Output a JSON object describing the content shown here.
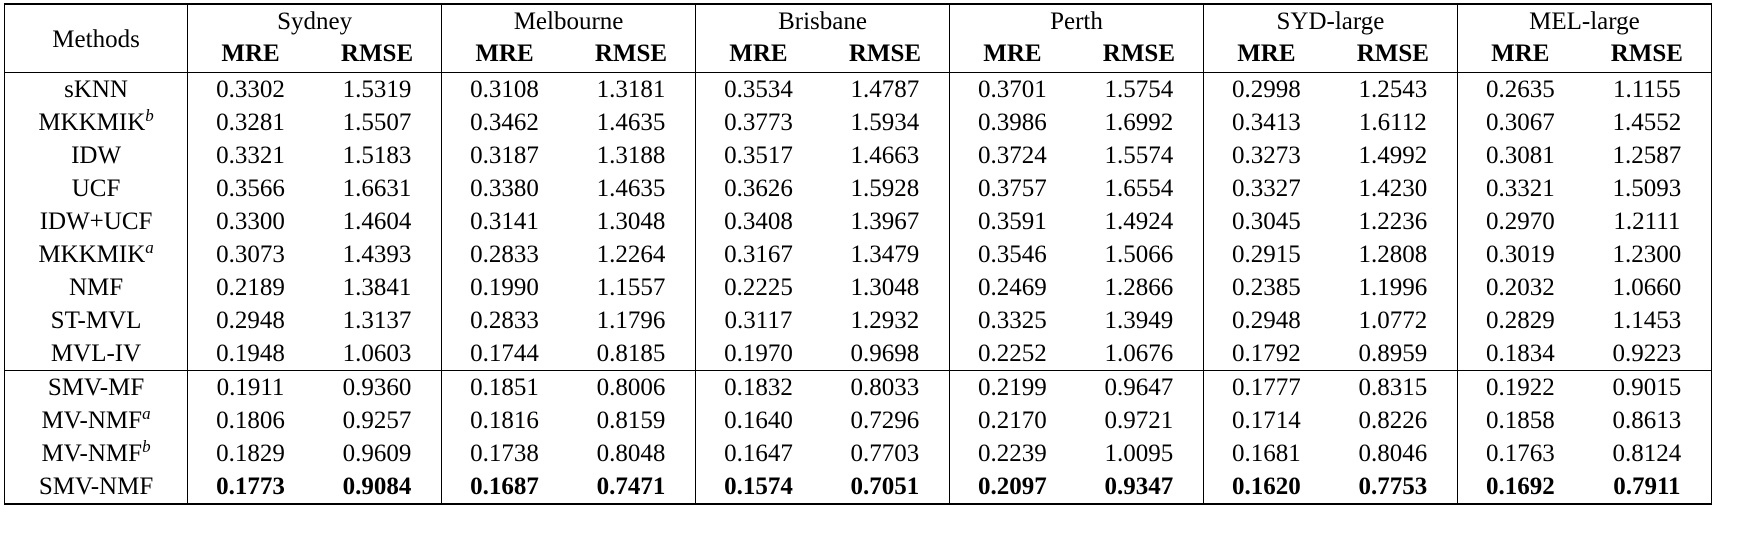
{
  "table": {
    "methods_header": "Methods",
    "cities": [
      "Sydney",
      "Melbourne",
      "Brisbane",
      "Perth",
      "SYD-large",
      "MEL-large"
    ],
    "metrics": [
      "MRE",
      "RMSE"
    ],
    "baselines": [
      {
        "name": "sKNN",
        "sup": "",
        "values": [
          "0.3302",
          "1.5319",
          "0.3108",
          "1.3181",
          "0.3534",
          "1.4787",
          "0.3701",
          "1.5754",
          "0.2998",
          "1.2543",
          "0.2635",
          "1.1155"
        ]
      },
      {
        "name": "MKKMIK",
        "sup": "b",
        "values": [
          "0.3281",
          "1.5507",
          "0.3462",
          "1.4635",
          "0.3773",
          "1.5934",
          "0.3986",
          "1.6992",
          "0.3413",
          "1.6112",
          "0.3067",
          "1.4552"
        ]
      },
      {
        "name": "IDW",
        "sup": "",
        "values": [
          "0.3321",
          "1.5183",
          "0.3187",
          "1.3188",
          "0.3517",
          "1.4663",
          "0.3724",
          "1.5574",
          "0.3273",
          "1.4992",
          "0.3081",
          "1.2587"
        ]
      },
      {
        "name": "UCF",
        "sup": "",
        "values": [
          "0.3566",
          "1.6631",
          "0.3380",
          "1.4635",
          "0.3626",
          "1.5928",
          "0.3757",
          "1.6554",
          "0.3327",
          "1.4230",
          "0.3321",
          "1.5093"
        ]
      },
      {
        "name": "IDW+UCF",
        "sup": "",
        "values": [
          "0.3300",
          "1.4604",
          "0.3141",
          "1.3048",
          "0.3408",
          "1.3967",
          "0.3591",
          "1.4924",
          "0.3045",
          "1.2236",
          "0.2970",
          "1.2111"
        ]
      },
      {
        "name": "MKKMIK",
        "sup": "a",
        "values": [
          "0.3073",
          "1.4393",
          "0.2833",
          "1.2264",
          "0.3167",
          "1.3479",
          "0.3546",
          "1.5066",
          "0.2915",
          "1.2808",
          "0.3019",
          "1.2300"
        ]
      },
      {
        "name": "NMF",
        "sup": "",
        "values": [
          "0.2189",
          "1.3841",
          "0.1990",
          "1.1557",
          "0.2225",
          "1.3048",
          "0.2469",
          "1.2866",
          "0.2385",
          "1.1996",
          "0.2032",
          "1.0660"
        ]
      },
      {
        "name": "ST-MVL",
        "sup": "",
        "values": [
          "0.2948",
          "1.3137",
          "0.2833",
          "1.1796",
          "0.3117",
          "1.2932",
          "0.3325",
          "1.3949",
          "0.2948",
          "1.0772",
          "0.2829",
          "1.1453"
        ]
      },
      {
        "name": "MVL-IV",
        "sup": "",
        "values": [
          "0.1948",
          "1.0603",
          "0.1744",
          "0.8185",
          "0.1970",
          "0.9698",
          "0.2252",
          "1.0676",
          "0.1792",
          "0.8959",
          "0.1834",
          "0.9223"
        ]
      }
    ],
    "proposed": [
      {
        "name": "SMV-MF",
        "sup": "",
        "values": [
          "0.1911",
          "0.9360",
          "0.1851",
          "0.8006",
          "0.1832",
          "0.8033",
          "0.2199",
          "0.9647",
          "0.1777",
          "0.8315",
          "0.1922",
          "0.9015"
        ]
      },
      {
        "name": "MV-NMF",
        "sup": "a",
        "values": [
          "0.1806",
          "0.9257",
          "0.1816",
          "0.8159",
          "0.1640",
          "0.7296",
          "0.2170",
          "0.9721",
          "0.1714",
          "0.8226",
          "0.1858",
          "0.8613"
        ]
      },
      {
        "name": "MV-NMF",
        "sup": "b",
        "values": [
          "0.1829",
          "0.9609",
          "0.1738",
          "0.8048",
          "0.1647",
          "0.7703",
          "0.2239",
          "1.0095",
          "0.1681",
          "0.8046",
          "0.1763",
          "0.8124"
        ]
      },
      {
        "name": "SMV-NMF",
        "sup": "",
        "values": [
          "0.1773",
          "0.9084",
          "0.1687",
          "0.7471",
          "0.1574",
          "0.7051",
          "0.2097",
          "0.9347",
          "0.1620",
          "0.7753",
          "0.1692",
          "0.7911"
        ]
      }
    ]
  }
}
